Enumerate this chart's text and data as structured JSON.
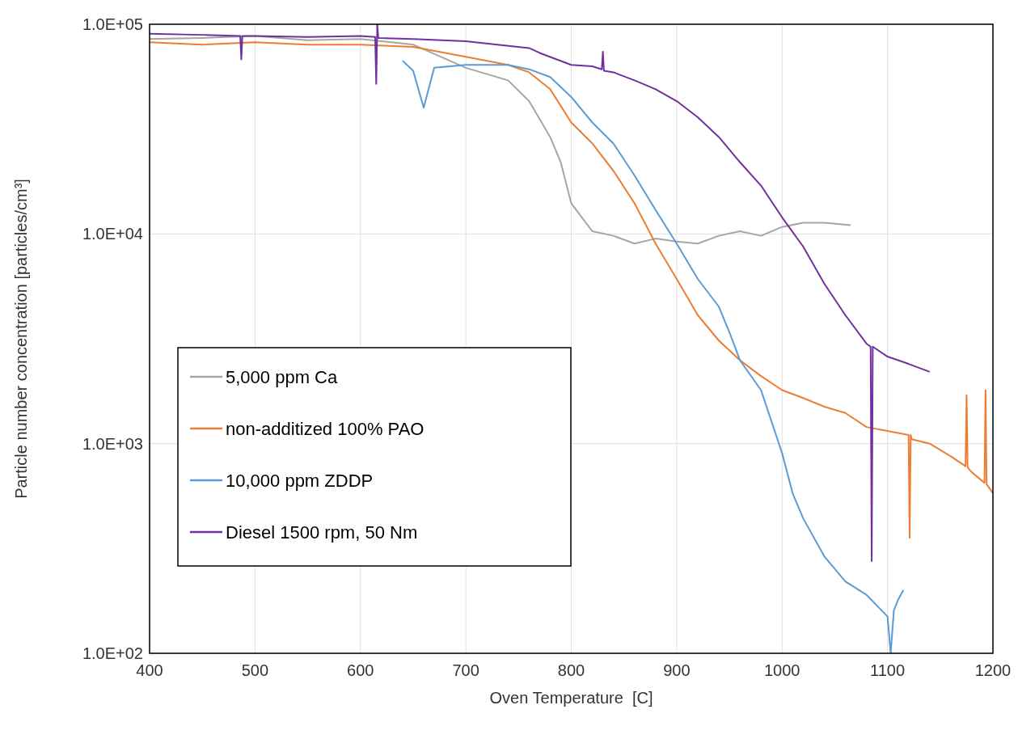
{
  "chart_data": {
    "type": "line",
    "xlabel": "Oven Temperature  [C]",
    "ylabel": "Particle number concentration [particles/cm³]",
    "log": "y",
    "grid": true,
    "legend": "bottom left",
    "line_style": "solid",
    "marker": "none",
    "xlim": [
      400,
      1200
    ],
    "xticks": [
      400,
      500,
      600,
      700,
      800,
      900,
      1000,
      1100,
      1200
    ],
    "ylim": [
      100,
      100000
    ],
    "yticks": [
      {
        "value": 100,
        "label": "1.0E+02"
      },
      {
        "value": 1000,
        "label": "1.0E+03"
      },
      {
        "value": 10000,
        "label": "1.0E+04"
      },
      {
        "value": 100000,
        "label": "1.0E+05"
      }
    ],
    "series": [
      {
        "name": "5,000 ppm Ca",
        "color": "#a5a5a5",
        "x": [
          400,
          450,
          500,
          550,
          600,
          650,
          700,
          740,
          760,
          780,
          790,
          800,
          810,
          820,
          840,
          860,
          880,
          900,
          920,
          940,
          960,
          980,
          1000,
          1020,
          1040,
          1065
        ],
        "values": [
          85000,
          86000,
          88000,
          84000,
          85000,
          80000,
          62000,
          54000,
          43000,
          29000,
          22000,
          14000,
          12000,
          10300,
          9800,
          9000,
          9500,
          9200,
          9000,
          9800,
          10300,
          9800,
          10800,
          11300,
          11300,
          11000
        ]
      },
      {
        "name": "non-additized 100% PAO",
        "color": "#ed7d31",
        "x": [
          400,
          450,
          500,
          550,
          600,
          650,
          700,
          740,
          760,
          780,
          800,
          820,
          840,
          860,
          880,
          900,
          920,
          940,
          960,
          980,
          1000,
          1020,
          1040,
          1060,
          1080,
          1100,
          1120,
          1121,
          1122,
          1123,
          1140,
          1160,
          1174,
          1175,
          1176,
          1180,
          1192,
          1193,
          1194,
          1200
        ],
        "values": [
          82000,
          80000,
          82000,
          80000,
          80000,
          78000,
          70000,
          64000,
          59000,
          49000,
          34000,
          27000,
          20000,
          14000,
          9000,
          6100,
          4100,
          3100,
          2500,
          2100,
          1800,
          1650,
          1500,
          1400,
          1200,
          1150,
          1100,
          355,
          1100,
          1050,
          1000,
          870,
          780,
          1700,
          770,
          730,
          650,
          1800,
          640,
          580
        ]
      },
      {
        "name": "10,000 ppm ZDDP",
        "color": "#5b9bd5",
        "x": [
          640,
          650,
          660,
          670,
          700,
          740,
          760,
          780,
          800,
          820,
          840,
          860,
          880,
          900,
          920,
          940,
          950,
          960,
          980,
          1000,
          1010,
          1020,
          1040,
          1060,
          1080,
          1100,
          1103,
          1106,
          1110,
          1115
        ],
        "values": [
          67000,
          60000,
          40000,
          62000,
          64000,
          64000,
          61000,
          56000,
          45000,
          34000,
          27000,
          19000,
          13000,
          9000,
          6100,
          4500,
          3400,
          2500,
          1800,
          900,
          580,
          440,
          290,
          220,
          190,
          150,
          100,
          160,
          180,
          200
        ]
      },
      {
        "name": "Diesel 1500 rpm, 50 Nm",
        "color": "#7030a0",
        "x": [
          400,
          450,
          486,
          487,
          488,
          500,
          550,
          600,
          614,
          615,
          616,
          617,
          650,
          700,
          760,
          770,
          800,
          820,
          829,
          830,
          831,
          840,
          860,
          880,
          900,
          920,
          940,
          960,
          980,
          1000,
          1020,
          1040,
          1060,
          1080,
          1084,
          1085,
          1086,
          1100,
          1120,
          1140
        ],
        "values": [
          90000,
          89000,
          88000,
          68000,
          88000,
          88000,
          87000,
          88000,
          87000,
          52000,
          100000,
          86000,
          85000,
          83000,
          77000,
          73000,
          64000,
          63000,
          61000,
          74000,
          60000,
          59000,
          54000,
          49000,
          43000,
          36000,
          29000,
          22000,
          17000,
          12000,
          8700,
          5800,
          4100,
          3000,
          2900,
          275,
          2900,
          2600,
          2400,
          2200
        ]
      }
    ]
  }
}
